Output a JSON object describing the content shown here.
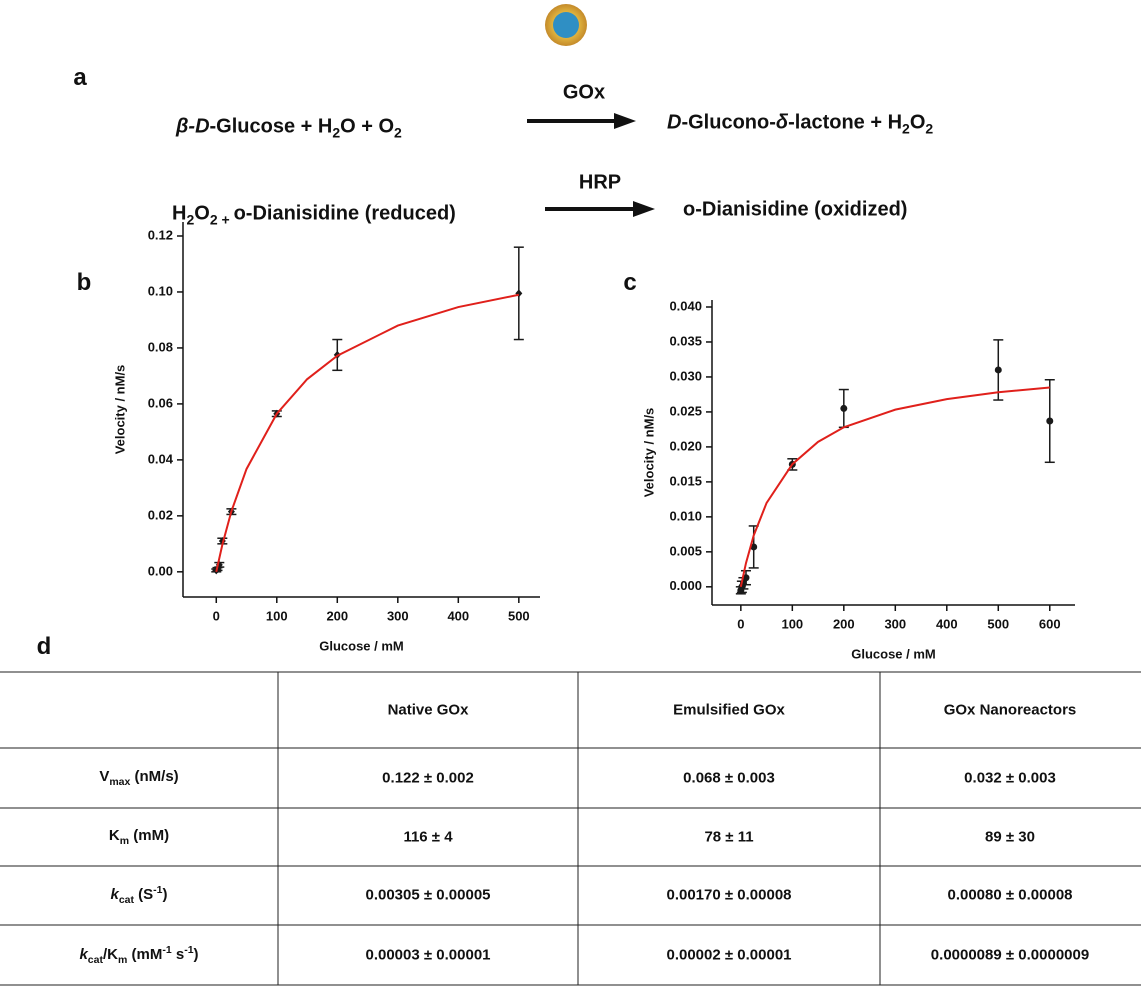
{
  "panels": {
    "a": "a",
    "b": "b",
    "c": "c",
    "d": "d"
  },
  "reactions": [
    {
      "reactants": [
        {
          "text": "β-D",
          "style": "italic"
        },
        {
          "text": "-Glucose  + H"
        },
        {
          "text": "2",
          "style": "sub"
        },
        {
          "text": "O + O"
        },
        {
          "text": "2",
          "style": "sub"
        }
      ],
      "enzyme": "GOx",
      "products": [
        {
          "text": "D",
          "style": "italic"
        },
        {
          "text": "-Glucono-"
        },
        {
          "text": "δ",
          "style": "italic"
        },
        {
          "text": "-lactone + H"
        },
        {
          "text": "2",
          "style": "sub"
        },
        {
          "text": "O"
        },
        {
          "text": "2",
          "style": "sub"
        }
      ]
    },
    {
      "reactants": [
        {
          "text": "H"
        },
        {
          "text": "2",
          "style": "sub"
        },
        {
          "text": "O"
        },
        {
          "text": "2",
          "style": "sub"
        },
        {
          "text": " + ",
          "style": "sub"
        },
        {
          "text": "o-Dianisidine (reduced)"
        }
      ],
      "enzyme": "HRP",
      "products": [
        {
          "text": "o-Dianisidine (oxidized)"
        }
      ]
    }
  ],
  "chart_data": [
    {
      "type": "scatter",
      "xlabel": "Glucose / mM",
      "ylabel": "Velocity / nM/s",
      "xlim": [
        -55,
        535
      ],
      "xticks": [
        0,
        100,
        200,
        300,
        400,
        500
      ],
      "ylim": [
        -0.009,
        0.125
      ],
      "yticks": [
        {
          "value": 0,
          "label": "0.00"
        },
        {
          "value": 0.02,
          "label": "0.02"
        },
        {
          "value": 0.04,
          "label": "0.04"
        },
        {
          "value": 0.06,
          "label": "0.06"
        },
        {
          "value": 0.08,
          "label": "0.08"
        },
        {
          "value": 0.1,
          "label": "0.10"
        },
        {
          "value": 0.12,
          "label": "0.12"
        }
      ],
      "series": [
        {
          "type": "scatter",
          "marker": "diamond",
          "color": "#1a1a1a",
          "x": [
            0,
            2,
            5,
            10,
            25,
            100,
            200,
            500
          ],
          "values": [
            0.0005,
            0.001,
            0.0025,
            0.011,
            0.0215,
            0.0565,
            0.0775,
            0.0995
          ],
          "errors": [
            0.0005,
            0.0005,
            0.0008,
            0.001,
            0.001,
            0.001,
            0.0055,
            0.0165
          ]
        },
        {
          "type": "line",
          "color": "#e0201b",
          "x": [
            0,
            10,
            25,
            50,
            100,
            150,
            200,
            300,
            400,
            500
          ],
          "values": [
            0,
            0.00968,
            0.02163,
            0.03675,
            0.05648,
            0.0688,
            0.0772,
            0.088,
            0.0946,
            0.099
          ]
        }
      ]
    },
    {
      "type": "scatter",
      "xlabel": "Glucose / mM",
      "ylabel": "Velocity / nM/s",
      "xlim": [
        -56,
        649
      ],
      "xticks": [
        0,
        100,
        200,
        300,
        400,
        500,
        600
      ],
      "ylim": [
        -0.0026,
        0.041
      ],
      "yticks": [
        {
          "value": 0,
          "label": "0.000"
        },
        {
          "value": 0.005,
          "label": "0.005"
        },
        {
          "value": 0.01,
          "label": "0.010"
        },
        {
          "value": 0.015,
          "label": "0.015"
        },
        {
          "value": 0.02,
          "label": "0.020"
        },
        {
          "value": 0.025,
          "label": "0.025"
        },
        {
          "value": 0.03,
          "label": "0.030"
        },
        {
          "value": 0.035,
          "label": "0.035"
        },
        {
          "value": 0.04,
          "label": "0.040"
        }
      ],
      "series": [
        {
          "type": "scatter",
          "marker": "circle",
          "color": "#1a1a1a",
          "x": [
            0,
            2,
            5,
            10,
            25,
            100,
            200,
            500,
            600
          ],
          "values": [
            -0.0005,
            0,
            0.0005,
            0.0013,
            0.0057,
            0.0175,
            0.0255,
            0.031,
            0.0237
          ],
          "errors": [
            0.0005,
            0.0008,
            0.0008,
            0.001,
            0.003,
            0.0008,
            0.0027,
            0.0043,
            0.0059
          ]
        },
        {
          "type": "line",
          "color": "#e0201b",
          "x": [
            0,
            10,
            25,
            50,
            100,
            150,
            200,
            300,
            400,
            500,
            600
          ],
          "values": [
            0,
            0.00339,
            0.00734,
            0.01199,
            0.01753,
            0.02072,
            0.0228,
            0.02533,
            0.02683,
            0.02781,
            0.0285
          ]
        }
      ]
    }
  ],
  "table": {
    "header": [
      "Native GOx",
      "Emulsified GOx",
      "GOx Nanoreactors"
    ],
    "rows": [
      {
        "label": [
          {
            "text": "V"
          },
          {
            "text": "max",
            "style": "sub"
          },
          {
            "text": " (nM/s)"
          }
        ],
        "cells": [
          "0.122 ± 0.002",
          "0.068 ± 0.003",
          "0.032 ± 0.003"
        ]
      },
      {
        "label": [
          {
            "text": "K"
          },
          {
            "text": "m",
            "style": "sub"
          },
          {
            "text": " (mM)"
          }
        ],
        "cells": [
          "116 ± 4",
          "78 ± 11",
          "89 ± 30"
        ]
      },
      {
        "label": [
          {
            "text": "k",
            "style": "italic"
          },
          {
            "text": "cat",
            "style": "sub"
          },
          {
            "text": " (S"
          },
          {
            "text": "-1",
            "style": "sup"
          },
          {
            "text": ")"
          }
        ],
        "cells": [
          "0.00305 ± 0.00005",
          "0.00170 ± 0.00008",
          "0.00080 ± 0.00008"
        ]
      },
      {
        "label": [
          {
            "text": "k",
            "style": "italic"
          },
          {
            "text": "cat",
            "style": "sub"
          },
          {
            "text": "/K"
          },
          {
            "text": "m",
            "style": "sub"
          },
          {
            "text": " (mM"
          },
          {
            "text": "-1",
            "style": "sup"
          },
          {
            "text": " s"
          },
          {
            "text": "-1",
            "style": "sup"
          },
          {
            "text": ")"
          }
        ],
        "cells": [
          "0.00003 ± 0.00001",
          "0.00002 ± 0.00001",
          "0.0000089 ± 0.0000009"
        ]
      }
    ]
  }
}
